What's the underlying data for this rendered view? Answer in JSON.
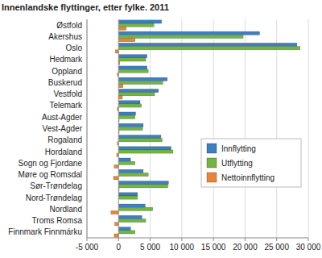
{
  "chart_data": {
    "type": "bar",
    "orientation": "horizontal",
    "title": "Innenlandske flyttinger, etter fylke. 2011",
    "categories": [
      "Østfold",
      "Akershus",
      "Oslo",
      "Hedmark",
      "Oppland",
      "Buskerud",
      "Vestfold",
      "Telemark",
      "Aust-Agder",
      "Vest-Agder",
      "Rogaland",
      "Hordaland",
      "Sogn og Fjordane",
      "Møre og Romsdal",
      "Sør-Trøndelag",
      "Nord-Trøndelag",
      "Nordland",
      "Troms Romsa",
      "Finnmark Finnmárku"
    ],
    "series": [
      {
        "name": "Innflytting",
        "color": "#3d7fbf",
        "values": [
          6800,
          22300,
          28200,
          4500,
          4500,
          7700,
          6300,
          3400,
          2700,
          3900,
          6700,
          8300,
          1900,
          3900,
          7900,
          3000,
          4200,
          3700,
          1900
        ]
      },
      {
        "name": "Utflytting",
        "color": "#72b541",
        "values": [
          5600,
          19700,
          28700,
          4300,
          4700,
          7000,
          5700,
          3600,
          2600,
          3800,
          6900,
          8600,
          2600,
          4700,
          7800,
          3000,
          5400,
          4300,
          2600
        ]
      },
      {
        "name": "Nettoinnflytting",
        "color": "#e8843a",
        "values": [
          1200,
          2600,
          -500,
          200,
          -200,
          700,
          600,
          -200,
          100,
          100,
          -200,
          -300,
          -700,
          -800,
          100,
          0,
          -1200,
          -600,
          -700
        ]
      }
    ],
    "xlim": [
      -5000,
      30000
    ],
    "xticks": [
      {
        "value": -5000,
        "label": "-5 000"
      },
      0,
      {
        "value": 5000,
        "label": "5 000"
      },
      {
        "value": 10000,
        "label": "10 000"
      },
      {
        "value": 15000,
        "label": "15 000"
      },
      {
        "value": 20000,
        "label": "20 000"
      },
      {
        "value": 25000,
        "label": "25 000"
      },
      {
        "value": 30000,
        "label": "30 000"
      }
    ],
    "grid": true,
    "legend": "right"
  }
}
